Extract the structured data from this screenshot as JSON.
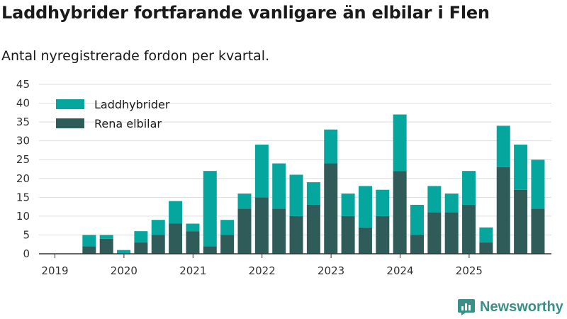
{
  "header": {
    "title": "Laddhybrider fortfarande vanligare än elbilar i Flen",
    "subtitle": "Antal nyregistrerade fordon per kvartal."
  },
  "brand": {
    "name": "Newsworthy"
  },
  "colors": {
    "hybrid": "#05a69e",
    "ev": "#2f5b58",
    "grid": "#dddddd",
    "axis": "#333333",
    "brand": "#3a8f86"
  },
  "chart_data": {
    "type": "bar",
    "stacked": true,
    "title": "Laddhybrider fortfarande vanligare än elbilar i Flen",
    "subtitle": "Antal nyregistrerade fordon per kvartal.",
    "xlabel": "",
    "ylabel": "",
    "ylim": [
      0,
      45
    ],
    "yticks": [
      0,
      5,
      10,
      15,
      20,
      25,
      30,
      35,
      40,
      45
    ],
    "xticks": [
      "2019",
      "2020",
      "2021",
      "2022",
      "2023",
      "2024",
      "2025"
    ],
    "legend_position": "top-left",
    "categories": [
      "2019-Q1",
      "2019-Q2",
      "2019-Q3",
      "2019-Q4",
      "2020-Q1",
      "2020-Q2",
      "2020-Q3",
      "2020-Q4",
      "2021-Q1",
      "2021-Q2",
      "2021-Q3",
      "2021-Q4",
      "2022-Q1",
      "2022-Q2",
      "2022-Q3",
      "2022-Q4",
      "2023-Q1",
      "2023-Q2",
      "2023-Q3",
      "2023-Q4",
      "2024-Q1",
      "2024-Q2",
      "2024-Q3",
      "2024-Q4",
      "2025-Q1",
      "2025-Q2",
      "2025-Q3",
      "2025-Q4"
    ],
    "series": [
      {
        "name": "Rena elbilar",
        "values": [
          0,
          2,
          4,
          0,
          3,
          5,
          8,
          6,
          2,
          5,
          12,
          15,
          12,
          10,
          13,
          24,
          10,
          7,
          10,
          22,
          5,
          11,
          11,
          13,
          3,
          23,
          17,
          12
        ]
      },
      {
        "name": "Laddhybrider",
        "values": [
          0,
          3,
          1,
          1,
          3,
          4,
          6,
          2,
          20,
          4,
          4,
          14,
          12,
          11,
          6,
          9,
          6,
          11,
          7,
          15,
          8,
          7,
          5,
          9,
          4,
          11,
          12,
          13
        ]
      }
    ],
    "legend": [
      "Laddhybrider",
      "Rena elbilar"
    ]
  }
}
